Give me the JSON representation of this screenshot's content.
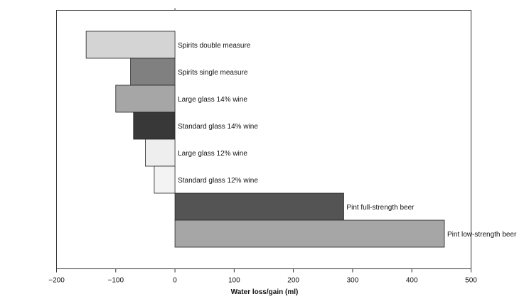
{
  "chart_data": {
    "type": "bar",
    "orientation": "horizontal",
    "title": "",
    "xlabel": "Water loss/gain (ml)",
    "ylabel": "",
    "xlim": [
      -200,
      500
    ],
    "xticks": [
      -200,
      -100,
      0,
      100,
      200,
      300,
      400,
      500
    ],
    "xtick_labels": [
      "−200",
      "−100",
      "0",
      "100",
      "200",
      "300",
      "400",
      "500"
    ],
    "categories": [
      "Spirits double measure",
      "Spirits single measure",
      "Large glass 14% wine",
      "Standard glass 14% wine",
      "Large glass 12% wine",
      "Standard glass 12% wine",
      "Pint full-strength beer",
      "Pint low-strength beer"
    ],
    "values": [
      -150,
      -75,
      -100,
      -70,
      -50,
      -35,
      285,
      455
    ],
    "colors": [
      "#d4d4d4",
      "#808080",
      "#a6a6a6",
      "#383838",
      "#eeeeee",
      "#f3f3f3",
      "#545454",
      "#a6a6a6"
    ]
  }
}
